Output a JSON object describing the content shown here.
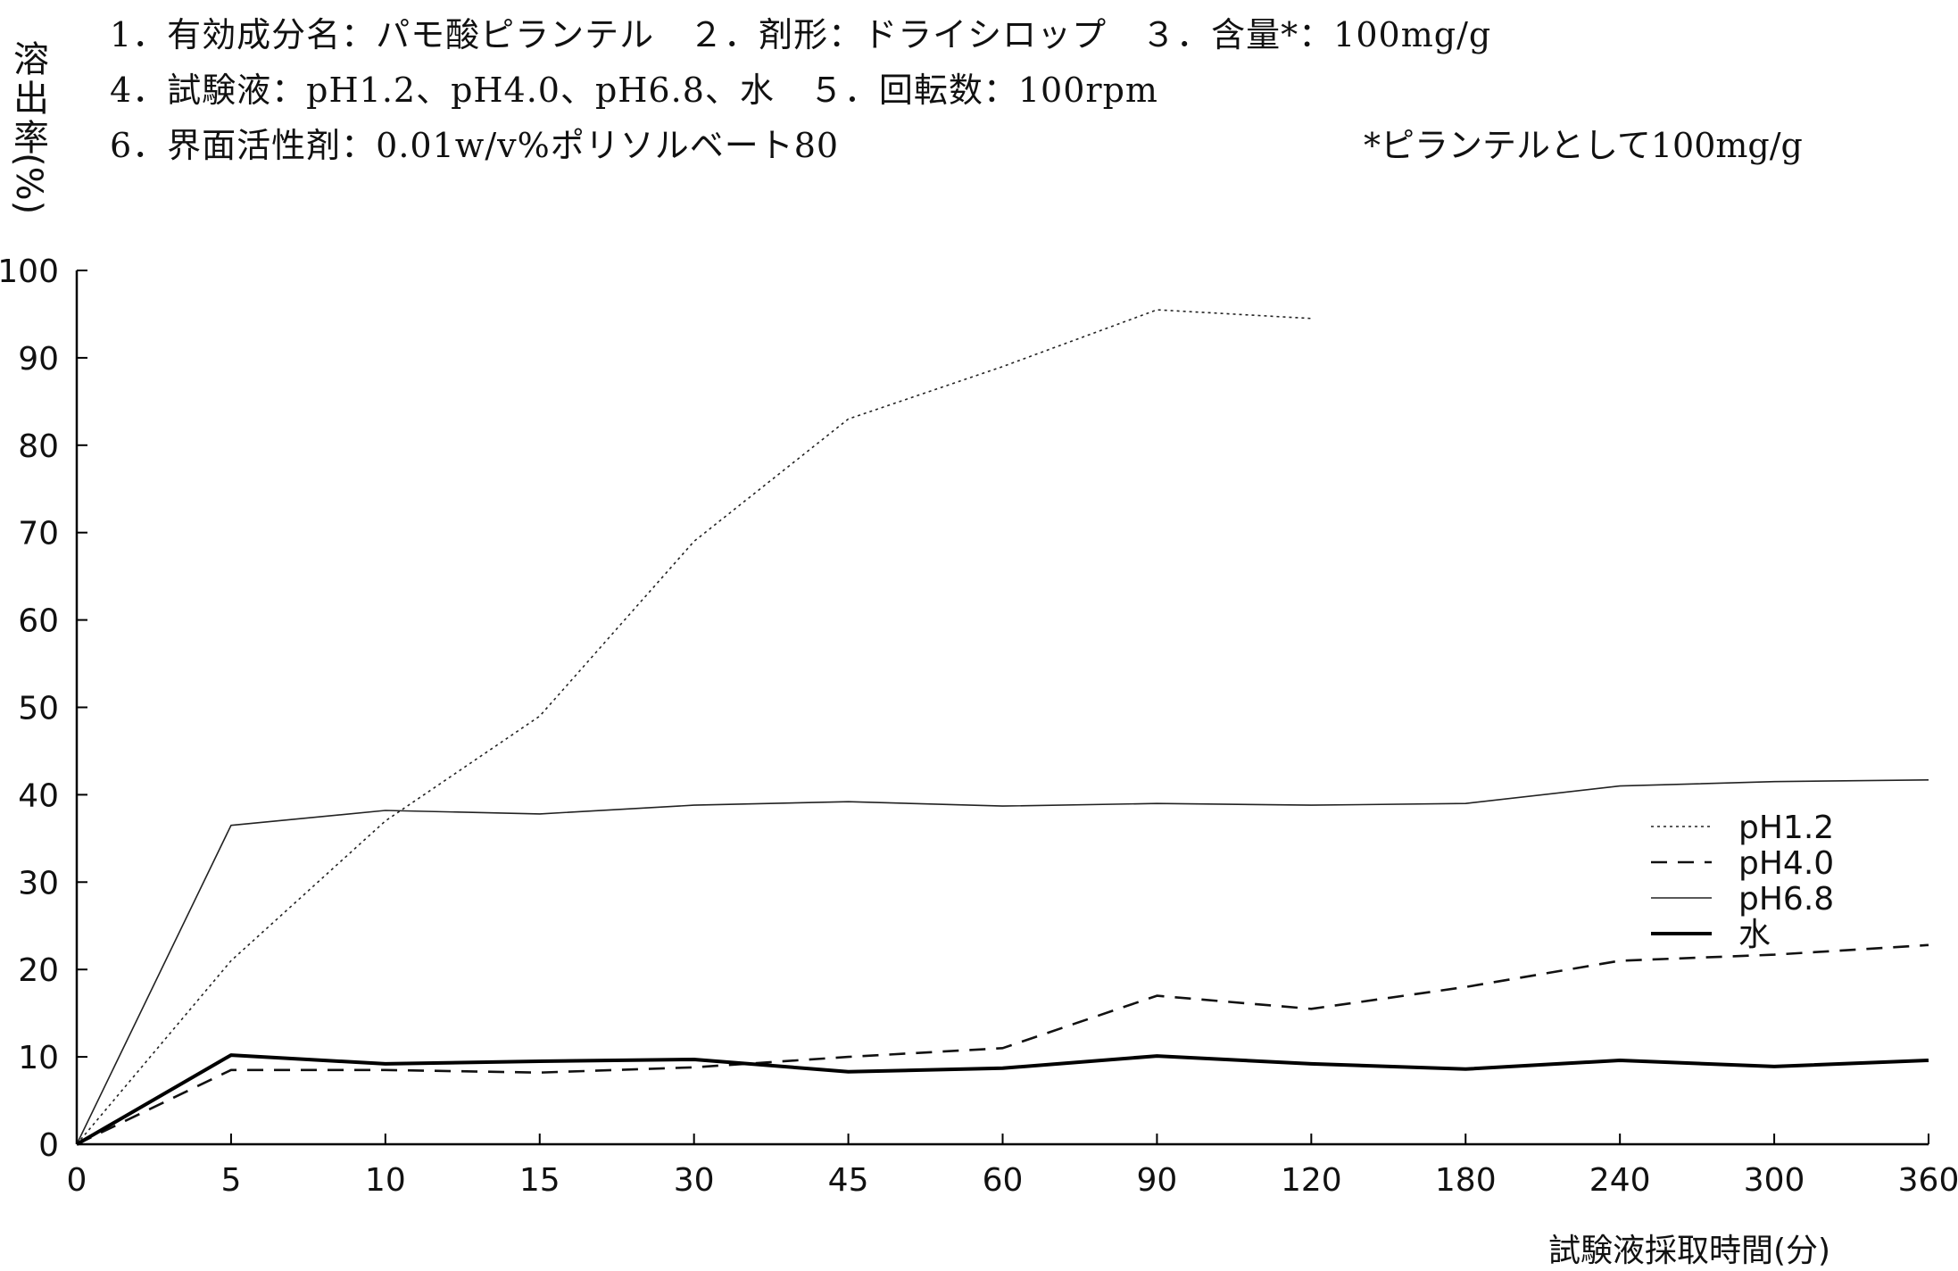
{
  "header": {
    "line1": "1．有効成分名：パモ酸ピランテル　２．剤形：ドライシロップ　３．含量*：100mg/g",
    "line2": "4．試験液：pH1.2、pH4.0、pH6.8、水　５．回転数：100rpm",
    "line3": "6．界面活性剤：0.01w/v%ポリソルベート80",
    "note": "*ピランテルとして100mg/g"
  },
  "chart_data": {
    "type": "line",
    "title": "",
    "ylabel_chars": [
      "溶",
      "出",
      "率",
      "(%)"
    ],
    "xlabel": "試験液採取時間(分)",
    "categories": [
      "0",
      "5",
      "10",
      "15",
      "30",
      "45",
      "60",
      "90",
      "120",
      "180",
      "240",
      "300",
      "360"
    ],
    "yticks": [
      "0",
      "10",
      "20",
      "30",
      "40",
      "50",
      "60",
      "70",
      "80",
      "90",
      "100"
    ],
    "ylim": [
      0,
      100
    ],
    "grid": false,
    "legend_position": "right",
    "series": [
      {
        "name": "pH1.2",
        "style": "dotted",
        "color": "#222222",
        "values": [
          0,
          21,
          37,
          49,
          69,
          83,
          89,
          95.5,
          94.5,
          null,
          null,
          null,
          null
        ]
      },
      {
        "name": "pH4.0",
        "style": "dashed",
        "color": "#111111",
        "values": [
          0,
          8.5,
          8.5,
          8.2,
          8.8,
          10,
          11,
          17,
          15.5,
          18,
          21,
          21.7,
          22.8
        ]
      },
      {
        "name": "pH6.8",
        "style": "thin",
        "color": "#222222",
        "values": [
          0,
          36.5,
          38.2,
          37.8,
          38.8,
          39.2,
          38.7,
          39,
          38.8,
          39,
          41,
          41.5,
          41.7
        ]
      },
      {
        "name": "水",
        "style": "thick",
        "color": "#000000",
        "values": [
          0,
          10.2,
          9.2,
          9.5,
          9.7,
          8.3,
          8.7,
          10.1,
          9.2,
          8.6,
          9.6,
          8.9,
          9.6
        ]
      }
    ]
  }
}
